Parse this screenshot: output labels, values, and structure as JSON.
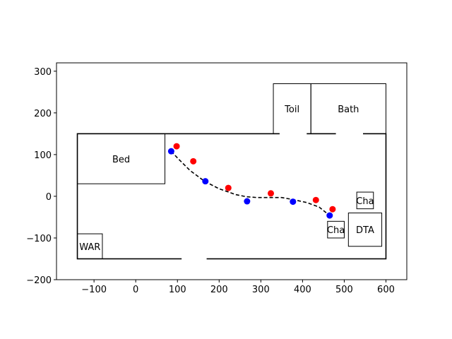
{
  "chart_data": {
    "type": "scatter",
    "title": "",
    "xlabel": "",
    "ylabel": "",
    "xlim": [
      -190,
      650
    ],
    "ylim": [
      -200,
      320
    ],
    "xticks": [
      -100,
      0,
      100,
      200,
      300,
      400,
      500,
      600
    ],
    "yticks": [
      -200,
      -100,
      0,
      100,
      200,
      300
    ],
    "grid": false,
    "floor_outline": {
      "x0": -140,
      "y0": -150,
      "x1": 600,
      "y1": 150
    },
    "doors": [
      {
        "x0": 345,
        "x1": 410,
        "y": 150
      },
      {
        "x0": 480,
        "x1": 545,
        "y": 150
      },
      {
        "x0": 110,
        "x1": 170,
        "y": -150
      }
    ],
    "rooms": [
      {
        "label": "Bed",
        "x0": -140,
        "y0": 30,
        "x1": 70,
        "y1": 150
      },
      {
        "label": "Toil",
        "x0": 330,
        "y0": 150,
        "x1": 420,
        "y1": 270
      },
      {
        "label": "Bath",
        "x0": 420,
        "y0": 150,
        "x1": 600,
        "y1": 270
      },
      {
        "label": "WAR",
        "x0": -140,
        "y0": -150,
        "x1": -80,
        "y1": -90
      },
      {
        "label": "Cha",
        "x0": 530,
        "y0": -30,
        "x1": 570,
        "y1": 10
      },
      {
        "label": "Cha",
        "x0": 460,
        "y0": -100,
        "x1": 500,
        "y1": -60
      },
      {
        "label": "DTA",
        "x0": 510,
        "y0": -120,
        "x1": 590,
        "y1": -40
      }
    ],
    "series": [
      {
        "style": "dashed-line",
        "color": "#000000",
        "x": [
          85,
          100,
          130,
          165,
          200,
          240,
          265,
          290,
          320,
          350,
          378,
          410,
          440,
          465
        ],
        "y": [
          108,
          92,
          62,
          36,
          18,
          4,
          -1,
          -3,
          -3,
          -3,
          -8,
          -15,
          -26,
          -46
        ]
      },
      {
        "style": "points",
        "color": "#0000ff",
        "x": [
          85,
          167,
          267,
          377,
          465
        ],
        "y": [
          108,
          36,
          -12,
          -13,
          -46
        ]
      },
      {
        "style": "points",
        "color": "#ff0000",
        "x": [
          98,
          138,
          222,
          324,
          432,
          472
        ],
        "y": [
          120,
          84,
          20,
          7,
          -9,
          -31
        ]
      }
    ]
  }
}
